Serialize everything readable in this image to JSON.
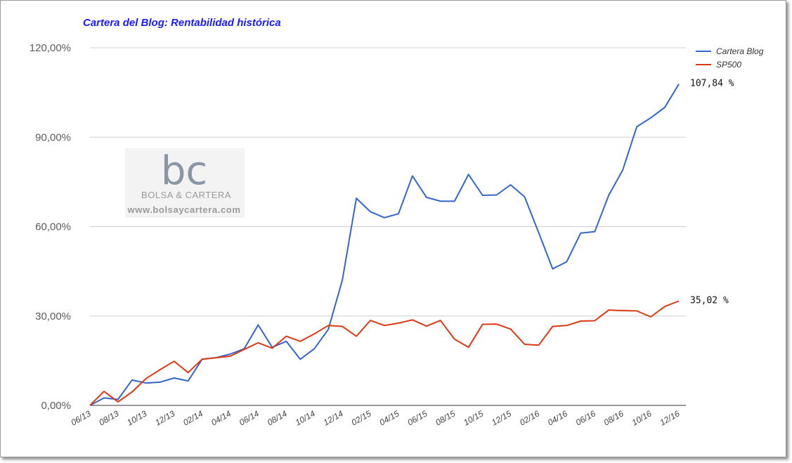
{
  "chart_data": {
    "type": "line",
    "title": "Cartera del Blog: Rentabilidad histórica",
    "xlabel": "",
    "ylabel": "",
    "ylim": [
      0,
      120
    ],
    "yticks": [
      "0,00%",
      "30,00%",
      "60,00%",
      "90,00%",
      "120,00%"
    ],
    "ytick_values": [
      0,
      30,
      60,
      90,
      120
    ],
    "grid": true,
    "legend_position": "top-right",
    "colors": {
      "title": "#1a1aff"
    },
    "x": [
      "06/13",
      "07/13",
      "08/13",
      "09/13",
      "10/13",
      "11/13",
      "12/13",
      "01/14",
      "02/14",
      "03/14",
      "04/14",
      "05/14",
      "06/14",
      "07/14",
      "08/14",
      "09/14",
      "10/14",
      "11/14",
      "12/14",
      "01/15",
      "02/15",
      "03/15",
      "04/15",
      "05/15",
      "06/15",
      "07/15",
      "08/15",
      "09/15",
      "10/15",
      "11/15",
      "12/15",
      "01/16",
      "02/16",
      "03/16",
      "04/16",
      "05/16",
      "06/16",
      "07/16",
      "08/16",
      "09/16",
      "10/16",
      "11/16",
      "12/16"
    ],
    "x_tick_labels": [
      "06/13",
      "08/13",
      "10/13",
      "12/13",
      "02/14",
      "04/14",
      "06/14",
      "08/14",
      "10/14",
      "12/14",
      "02/15",
      "04/15",
      "06/15",
      "08/15",
      "10/15",
      "12/15",
      "02/16",
      "04/16",
      "06/16",
      "08/16",
      "10/16",
      "12/16"
    ],
    "series": [
      {
        "name": "Cartera Blog",
        "color": "#3366cc",
        "values": [
          0,
          2.5,
          2.0,
          8.5,
          7.5,
          7.8,
          9.2,
          8.2,
          15.5,
          16.0,
          17.2,
          19.0,
          27.0,
          19.5,
          21.5,
          15.5,
          19.0,
          25.5,
          42.0,
          69.5,
          65.0,
          63.0,
          64.3,
          77.0,
          69.8,
          68.5,
          68.5,
          77.5,
          70.5,
          70.6,
          74.0,
          70.0,
          58.0,
          45.8,
          48.2,
          57.8,
          58.3,
          70.5,
          79.0,
          93.5,
          96.5,
          100.0,
          107.84
        ],
        "end_label": "107,84 %"
      },
      {
        "name": "SP500",
        "color": "#dc3912",
        "values": [
          0,
          4.7,
          1.2,
          4.5,
          9.0,
          12.0,
          14.8,
          11.0,
          15.5,
          16.0,
          16.5,
          18.8,
          21.0,
          19.2,
          23.2,
          21.5,
          24.0,
          26.8,
          26.5,
          23.2,
          28.5,
          26.8,
          27.6,
          28.7,
          26.6,
          28.5,
          22.2,
          19.5,
          27.2,
          27.3,
          25.6,
          20.5,
          20.2,
          26.5,
          26.8,
          28.3,
          28.4,
          32.0,
          31.8,
          31.7,
          29.7,
          33.2,
          35.02
        ],
        "end_label": "35,02 %"
      }
    ]
  },
  "watermark": {
    "logo_text": "bc",
    "brand": "BOLSA & CARTERA",
    "url": "www.bolsaycartera.com"
  }
}
